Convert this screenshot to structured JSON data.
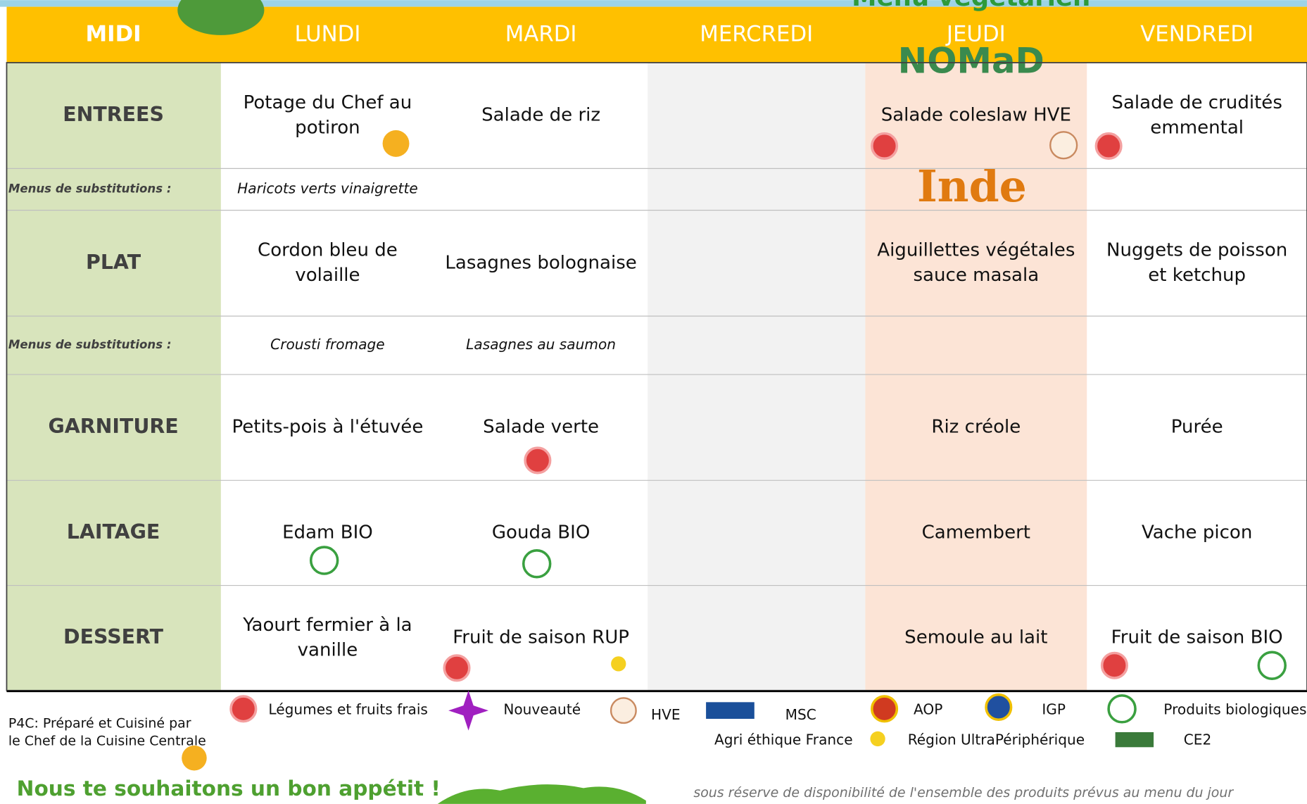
{
  "header": {
    "banner": "Menu végétarien",
    "midi": "MIDI",
    "days": [
      "LUNDI",
      "MARDI",
      "MERCREDI",
      "JEUDI",
      "VENDREDI"
    ]
  },
  "logo": "NOMaD",
  "theme": "Inde",
  "rows": [
    {
      "label": "ENTREES",
      "kind": "main",
      "cells": [
        [
          "Potage du Chef au",
          "potiron"
        ],
        [
          "Salade de riz"
        ],
        null,
        [
          "Salade coleslaw HVE"
        ],
        [
          "Salade de crudités",
          "emmental"
        ]
      ]
    },
    {
      "label": "Menus de substitutions :",
      "kind": "sub",
      "cells": [
        [
          "Haricots verts vinaigrette"
        ],
        null,
        null,
        null,
        null
      ]
    },
    {
      "label": "PLAT",
      "kind": "main",
      "cells": [
        [
          "Cordon bleu de",
          "volaille"
        ],
        [
          "Lasagnes bolognaise"
        ],
        null,
        [
          "Aiguillettes végétales",
          "sauce masala"
        ],
        [
          "Nuggets de poisson",
          "et ketchup"
        ]
      ]
    },
    {
      "label": "Menus de substitutions :",
      "kind": "sub",
      "cells": [
        [
          "Crousti fromage"
        ],
        [
          "Lasagnes au saumon"
        ],
        null,
        null,
        null
      ]
    },
    {
      "label": "GARNITURE",
      "kind": "main",
      "cells": [
        [
          "Petits-pois à l'étuvée"
        ],
        [
          "Salade verte"
        ],
        null,
        [
          "Riz créole"
        ],
        [
          "Purée"
        ]
      ]
    },
    {
      "label": "LAITAGE",
      "kind": "main",
      "cells": [
        [
          "Edam BIO"
        ],
        [
          "Gouda BIO"
        ],
        null,
        [
          "Camembert"
        ],
        [
          "Vache picon"
        ]
      ]
    },
    {
      "label": "DESSERT",
      "kind": "main",
      "cells": [
        [
          "Yaourt fermier à la",
          "vanille"
        ],
        [
          "Fruit de saison RUP"
        ],
        null,
        [
          "Semoule au lait"
        ],
        [
          "Fruit de saison BIO"
        ]
      ]
    }
  ],
  "legend": [
    "Légumes et fruits frais",
    "Nouveauté",
    "HVE",
    "MSC",
    "AOP",
    "IGP",
    "Produits biologiques",
    "Agri éthique France",
    "Région UltraPériphérique",
    "CE2"
  ],
  "footer": {
    "p4c": [
      "P4C:  Préparé et  Cuisiné par",
      "le Chef de la Cuisine Centrale"
    ],
    "greeting": "Nous te souhaitons un bon appétit !",
    "disclaimer": "sous réserve de disponibilité de l'ensemble des produits prévus au menu du jour"
  }
}
